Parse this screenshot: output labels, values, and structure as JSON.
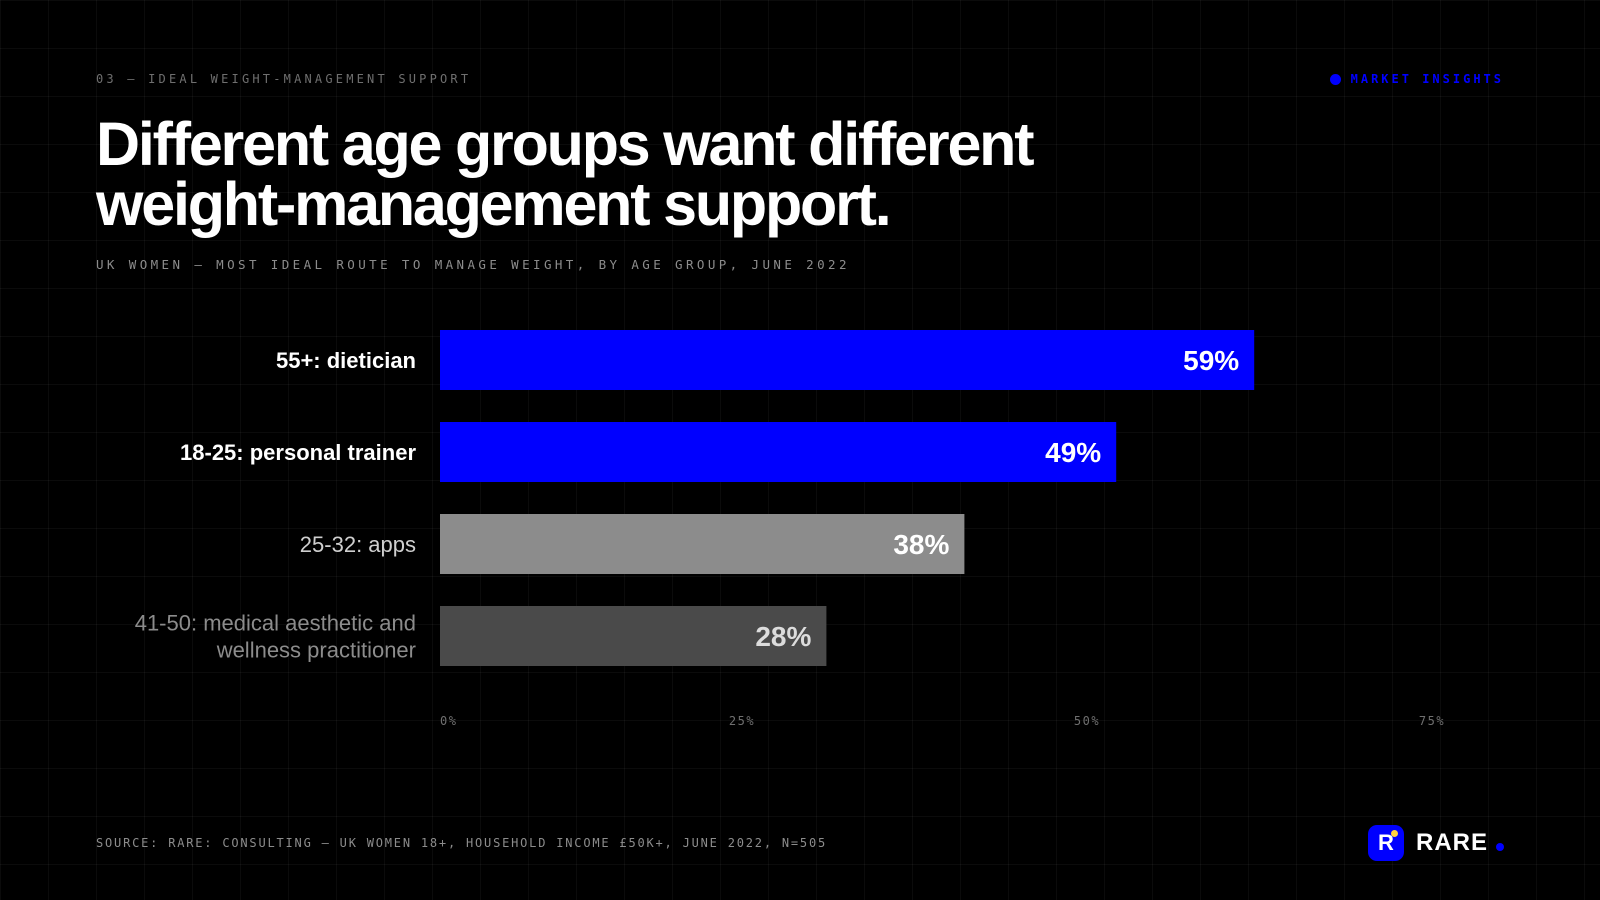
{
  "eyebrow": "03 — IDEAL WEIGHT-MANAGEMENT SUPPORT",
  "tag": {
    "label": "MARKET INSIGHTS"
  },
  "title": "Different age groups want different weight-management support.",
  "subtitle": "UK WOMEN — MOST IDEAL ROUTE TO MANAGE WEIGHT, BY AGE GROUP, JUNE 2022",
  "footer": {
    "source": "SOURCE: RARE: CONSULTING — UK WOMEN 18+, HOUSEHOLD INCOME £50K+, JUNE 2022, N=505"
  },
  "brand": {
    "mark": "R",
    "name": "RARE"
  },
  "colors": {
    "accent": "#0000ff",
    "bar_light": "#8c8c8c",
    "bar_dark": "#4a4a4a",
    "background": "#000000",
    "logo_dot": "#ffd23f"
  },
  "chart_data": {
    "type": "bar",
    "orientation": "horizontal",
    "categories": [
      [
        "55+: dietician"
      ],
      [
        "18-25: personal trainer"
      ],
      [
        "25-32: apps"
      ],
      [
        "41-50: medical aesthetic and",
        "wellness practitioner"
      ]
    ],
    "values": [
      59,
      49,
      38,
      28
    ],
    "value_labels": [
      "59%",
      "49%",
      "38%",
      "28%"
    ],
    "bar_colors": [
      "#0000ff",
      "#0000ff",
      "#8c8c8c",
      "#4a4a4a"
    ],
    "category_label_colors": [
      "#ffffff",
      "#ffffff",
      "#cfcfcf",
      "#8c8c8c"
    ],
    "value_label_colors": [
      "#ffffff",
      "#ffffff",
      "#ffffff",
      "#dcdcdc"
    ],
    "xlim": [
      0,
      75
    ],
    "x_ticks": [
      0,
      25,
      50,
      75
    ],
    "x_tick_labels": [
      "0%",
      "25%",
      "50%",
      "75%"
    ],
    "grid": true
  }
}
